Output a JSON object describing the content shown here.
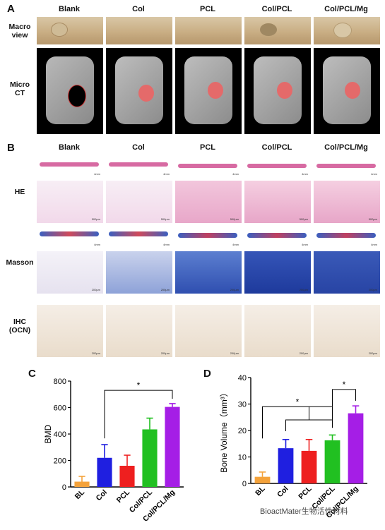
{
  "panel_a": {
    "letter": "A",
    "columns": [
      "Blank",
      "Col",
      "PCL",
      "Col/PCL",
      "Col/PCL/Mg"
    ],
    "rows": [
      [
        "Macro",
        "view"
      ],
      [
        "Micro",
        "CT"
      ]
    ]
  },
  "panel_b": {
    "letter": "B",
    "columns": [
      "Blank",
      "Col",
      "PCL",
      "Col/PCL",
      "Col/PCL/Mg"
    ],
    "rows": [
      [
        "HE"
      ],
      [
        "Masson"
      ],
      [
        "IHC",
        "(OCN)"
      ]
    ],
    "scale_low": "4mm",
    "scale_high_he": "500μm",
    "scale_high_masson": "200μm",
    "scale_ihc": "200μm"
  },
  "panel_c": {
    "letter": "C"
  },
  "panel_d": {
    "letter": "D"
  },
  "watermark": "BioactMater生物活性材料",
  "chart_data": [
    {
      "type": "bar",
      "categories": [
        "BL",
        "Col",
        "PCL",
        "Col/PCL",
        "Col/PCL/Mg"
      ],
      "values": [
        40,
        220,
        160,
        435,
        605
      ],
      "errors": [
        40,
        100,
        80,
        85,
        25
      ],
      "colors": [
        "#f4a23a",
        "#1f1fe0",
        "#ee1f1f",
        "#21c021",
        "#a51ee6"
      ],
      "title": "",
      "xlabel": "",
      "ylabel": "BMD",
      "ylim": [
        0,
        800
      ],
      "yticks": [
        0,
        200,
        400,
        600,
        800
      ],
      "significance": [
        {
          "from": "Col",
          "to": "Col/PCL/Mg",
          "label": "*"
        }
      ]
    },
    {
      "type": "bar",
      "categories": [
        "BL",
        "Col",
        "PCL",
        "Col/PCL",
        "Col/PCL/Mg"
      ],
      "values": [
        2.5,
        13.3,
        12.3,
        16.3,
        26.5
      ],
      "errors": [
        1.8,
        3.3,
        4.3,
        2.0,
        2.8
      ],
      "colors": [
        "#f4a23a",
        "#1f1fe0",
        "#ee1f1f",
        "#21c021",
        "#a51ee6"
      ],
      "title": "",
      "xlabel": "",
      "ylabel": "Bone Volume（mm³）",
      "ylim": [
        0,
        40
      ],
      "yticks": [
        0,
        10,
        20,
        30,
        40
      ],
      "significance": [
        {
          "from": "BL",
          "to": "Col/PCL",
          "label": "*"
        },
        {
          "from": "Col/PCL",
          "to": "Col/PCL/Mg",
          "label": "*"
        }
      ]
    }
  ]
}
